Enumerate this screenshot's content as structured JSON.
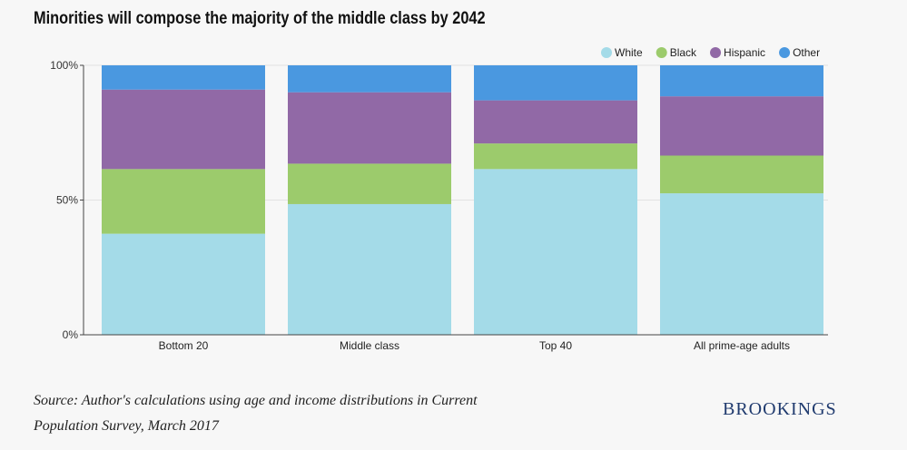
{
  "chart_data": {
    "type": "bar",
    "stacked": true,
    "title": "Minorities will compose the majority of the middle class by 2042",
    "categories": [
      "Bottom 20",
      "Middle class",
      "Top 40",
      "All prime-age adults"
    ],
    "series": [
      {
        "name": "White",
        "color": "#a4dbe8",
        "values": [
          37.5,
          48.5,
          61.5,
          52.5
        ]
      },
      {
        "name": "Black",
        "color": "#9ccb6c",
        "values": [
          24,
          15,
          9.5,
          14
        ]
      },
      {
        "name": "Hispanic",
        "color": "#9169a6",
        "values": [
          29.5,
          26.5,
          16,
          22
        ]
      },
      {
        "name": "Other",
        "color": "#4a98e0",
        "values": [
          9,
          10,
          13,
          11.5
        ]
      }
    ],
    "y_ticks": [
      "0%",
      "50%",
      "100%"
    ],
    "y_tick_values": [
      0,
      50,
      100
    ],
    "ylim": [
      0,
      100
    ],
    "legend_position": "top-right",
    "grid": true
  },
  "source": {
    "line1": "Source: Author's calculations using age and income distributions in Current",
    "line2": "Population Survey, March 2017"
  },
  "logo": "BROOKINGS"
}
